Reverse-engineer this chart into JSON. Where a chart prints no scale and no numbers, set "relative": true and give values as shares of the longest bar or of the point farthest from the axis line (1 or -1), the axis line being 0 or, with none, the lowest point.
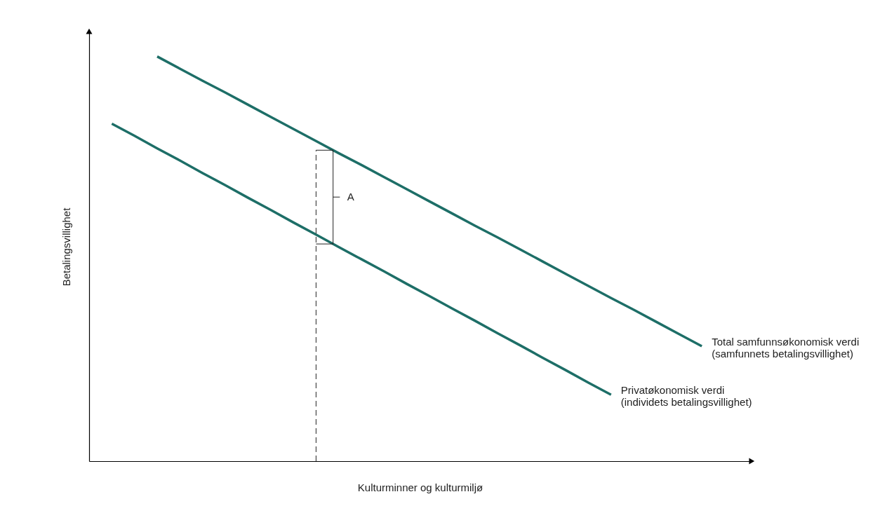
{
  "chart_data": {
    "type": "line",
    "relative": true,
    "xlabel": "Kulturminner og kulturmiljø",
    "ylabel": "Betalingsvillighet",
    "categories": [
      null,
      null,
      null,
      null,
      null,
      null,
      null,
      null,
      null,
      null,
      null,
      null,
      null,
      null,
      null,
      null,
      null,
      null,
      null,
      null,
      null,
      null,
      null,
      null,
      null,
      null,
      null,
      null
    ],
    "series": [
      {
        "name": "Total samfunnsøkonomisk verdi\n(samfunnets betalingsvillighet)",
        "color": "#1d6e67",
        "values": [
          null,
          null,
          null,
          1,
          0.97,
          0.94,
          0.911,
          0.881,
          0.851,
          0.821,
          0.791,
          0.761,
          0.732,
          0.702,
          0.672,
          0.642,
          0.612,
          0.582,
          0.553,
          0.523,
          0.493,
          0.463,
          0.433,
          0.403,
          0.374,
          0.344,
          0.314,
          0.284
        ]
      },
      {
        "name": "Privatøkonomisk verdi\n(individets betalingsvillighet)",
        "color": "#1d6e67",
        "values": [
          null,
          0.834,
          0.804,
          0.773,
          0.743,
          0.712,
          0.682,
          0.651,
          0.621,
          0.59,
          0.56,
          0.529,
          0.499,
          0.469,
          0.438,
          0.408,
          0.377,
          0.347,
          0.316,
          0.286,
          0.255,
          0.225,
          0.194,
          0.164,
          null,
          null,
          null,
          null
        ]
      }
    ],
    "annotations": [
      "A"
    ]
  }
}
